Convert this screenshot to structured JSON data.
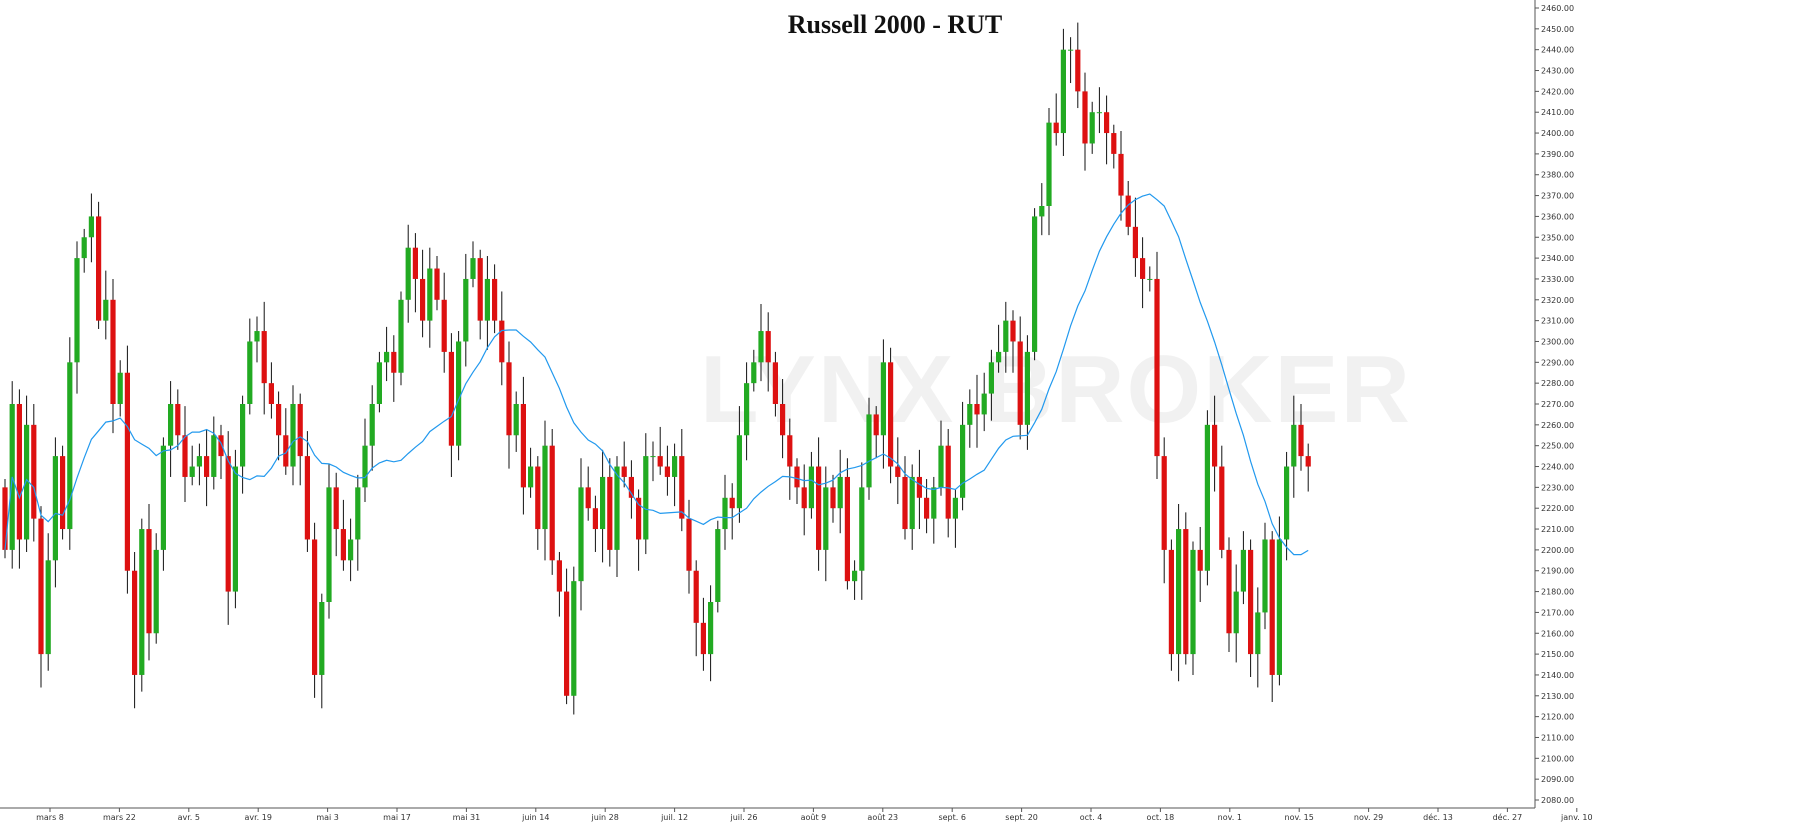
{
  "chart_data": {
    "type": "candlestick",
    "title": "Russell 2000 - RUT",
    "watermark": "LYNX BROKER",
    "ylim": [
      2080,
      2460
    ],
    "y_ticks": [
      "2460.00",
      "2450.00",
      "2440.00",
      "2430.00",
      "2420.00",
      "2410.00",
      "2400.00",
      "2390.00",
      "2380.00",
      "2370.00",
      "2360.00",
      "2350.00",
      "2340.00",
      "2330.00",
      "2320.00",
      "2310.00",
      "2300.00",
      "2290.00",
      "2280.00",
      "2270.00",
      "2260.00",
      "2250.00",
      "2240.00",
      "2230.00",
      "2220.00",
      "2210.00",
      "2200.00",
      "2190.00",
      "2180.00",
      "2170.00",
      "2160.00",
      "2150.00",
      "2140.00",
      "2130.00",
      "2120.00",
      "2110.00",
      "2100.00",
      "2090.00",
      "2080.00"
    ],
    "x_tick_labels": [
      "mars 8",
      "mars 22",
      "avr. 5",
      "avr. 19",
      "mai 3",
      "mai 17",
      "mai 31",
      "juin 14",
      "juin 28",
      "juil. 12",
      "juil. 26",
      "août 9",
      "août 23",
      "sept. 6",
      "sept. 20",
      "oct. 4",
      "oct. 18",
      "nov. 1",
      "nov. 15",
      "nov. 29",
      "déc. 13",
      "déc. 27",
      "janv. 10"
    ],
    "grid": false,
    "legend": "none",
    "colors": {
      "up": "#22aa22",
      "down": "#dd1111",
      "ma": "#2299ee"
    },
    "closes": [
      2200,
      2270,
      2205,
      2260,
      2215,
      2150,
      2195,
      2245,
      2210,
      2290,
      2340,
      2350,
      2360,
      2310,
      2320,
      2270,
      2285,
      2190,
      2140,
      2210,
      2160,
      2200,
      2250,
      2270,
      2255,
      2235,
      2240,
      2245,
      2235,
      2255,
      2245,
      2180,
      2240,
      2270,
      2300,
      2305,
      2280,
      2270,
      2255,
      2240,
      2270,
      2245,
      2205,
      2140,
      2175,
      2230,
      2210,
      2195,
      2205,
      2230,
      2250,
      2270,
      2290,
      2295,
      2285,
      2320,
      2345,
      2330,
      2310,
      2335,
      2320,
      2295,
      2250,
      2300,
      2330,
      2340,
      2310,
      2330,
      2310,
      2290,
      2255,
      2270,
      2230,
      2240,
      2210,
      2250,
      2195,
      2180,
      2130,
      2185,
      2230,
      2220,
      2210,
      2235,
      2200,
      2240,
      2235,
      2225,
      2205,
      2245,
      2245,
      2240,
      2235,
      2245,
      2215,
      2190,
      2165,
      2150,
      2175,
      2210,
      2225,
      2220,
      2255,
      2280,
      2290,
      2305,
      2290,
      2270,
      2255,
      2240,
      2230,
      2220,
      2240,
      2200,
      2230,
      2220,
      2235,
      2185,
      2190,
      2230,
      2265,
      2255,
      2290,
      2240,
      2235,
      2210,
      2235,
      2225,
      2215,
      2230,
      2250,
      2215,
      2225,
      2260,
      2270,
      2265,
      2275,
      2290,
      2295,
      2310,
      2300,
      2260,
      2295,
      2360,
      2365,
      2405,
      2400,
      2440,
      2440,
      2420,
      2395,
      2410,
      2410,
      2400,
      2390,
      2370,
      2355,
      2340,
      2330,
      2330,
      2245,
      2200,
      2150,
      2210,
      2150,
      2200,
      2190,
      2260,
      2240,
      2200,
      2160,
      2180,
      2200,
      2150,
      2170,
      2205,
      2140,
      2205,
      2240,
      2260,
      2245,
      2240
    ],
    "moving_average": "MA20"
  }
}
